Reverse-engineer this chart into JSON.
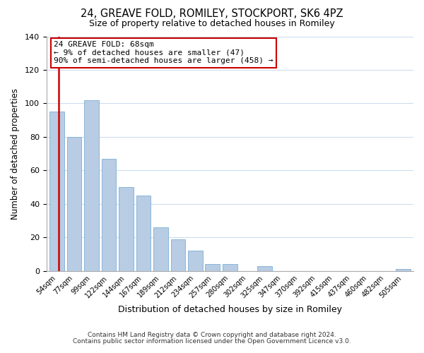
{
  "title": "24, GREAVE FOLD, ROMILEY, STOCKPORT, SK6 4PZ",
  "subtitle": "Size of property relative to detached houses in Romiley",
  "xlabel": "Distribution of detached houses by size in Romiley",
  "ylabel": "Number of detached properties",
  "footer_line1": "Contains HM Land Registry data © Crown copyright and database right 2024.",
  "footer_line2": "Contains public sector information licensed under the Open Government Licence v3.0.",
  "bar_labels": [
    "54sqm",
    "77sqm",
    "99sqm",
    "122sqm",
    "144sqm",
    "167sqm",
    "189sqm",
    "212sqm",
    "234sqm",
    "257sqm",
    "280sqm",
    "302sqm",
    "325sqm",
    "347sqm",
    "370sqm",
    "392sqm",
    "415sqm",
    "437sqm",
    "460sqm",
    "482sqm",
    "505sqm"
  ],
  "bar_values": [
    95,
    80,
    102,
    67,
    50,
    45,
    26,
    19,
    12,
    4,
    4,
    0,
    3,
    0,
    0,
    0,
    0,
    0,
    0,
    0,
    1
  ],
  "bar_color": "#b8cce4",
  "bar_edge_color": "#7bafd4",
  "highlight_line_color": "#cc0000",
  "annotation_title": "24 GREAVE FOLD: 68sqm",
  "annotation_line1": "← 9% of detached houses are smaller (47)",
  "annotation_line2": "90% of semi-detached houses are larger (458) →",
  "annotation_box_facecolor": "#ffffff",
  "annotation_box_edgecolor": "#cc0000",
  "ylim": [
    0,
    140
  ],
  "yticks": [
    0,
    20,
    40,
    60,
    80,
    100,
    120,
    140
  ],
  "grid_color": "#ccddee",
  "bg_color": "#ffffff",
  "red_line_x": 0.5
}
